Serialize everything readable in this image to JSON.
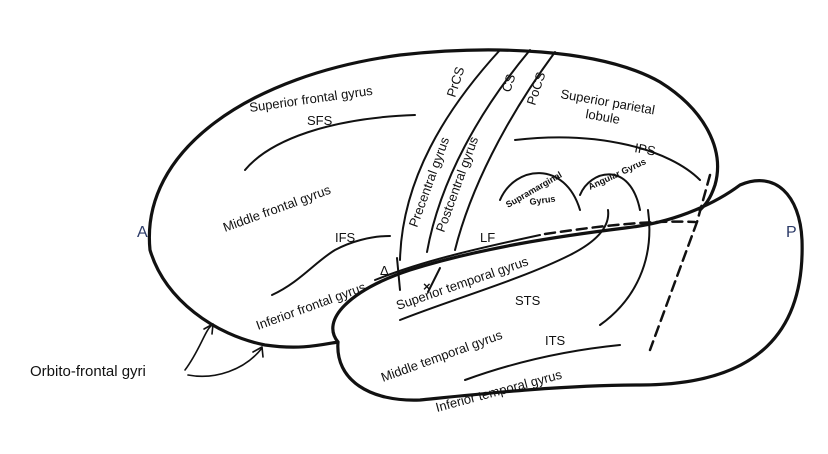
{
  "orientation": {
    "anterior": "A",
    "posterior": "P"
  },
  "gyri": {
    "superior_frontal": "Superior frontal gyrus",
    "middle_frontal": "Middle frontal gyrus",
    "inferior_frontal": "Inferior frontal gyrus",
    "precentral": "Precentral gyrus",
    "postcentral": "Postcentral gyrus",
    "superior_parietal_line1": "Superior parietal",
    "superior_parietal_line2": "lobule",
    "supramarginal_line1": "Supramarginal",
    "supramarginal_line2": "Gyrus",
    "angular": "Angular Gyrus",
    "superior_temporal": "Superior temporal gyrus",
    "middle_temporal": "Middle temporal gyrus",
    "inferior_temporal": "Inferior temporal gyrus",
    "orbito_frontal": "Orbito-frontal gyri"
  },
  "sulci": {
    "sfs": "SFS",
    "ifs": "IFS",
    "prcs": "PrCS",
    "cs": "CS",
    "pocs": "PoCS",
    "ips": "IPS",
    "lf": "LF",
    "sts": "STS",
    "its": "ITS"
  },
  "markers": {
    "triangle": "Δ",
    "cross": "×"
  }
}
